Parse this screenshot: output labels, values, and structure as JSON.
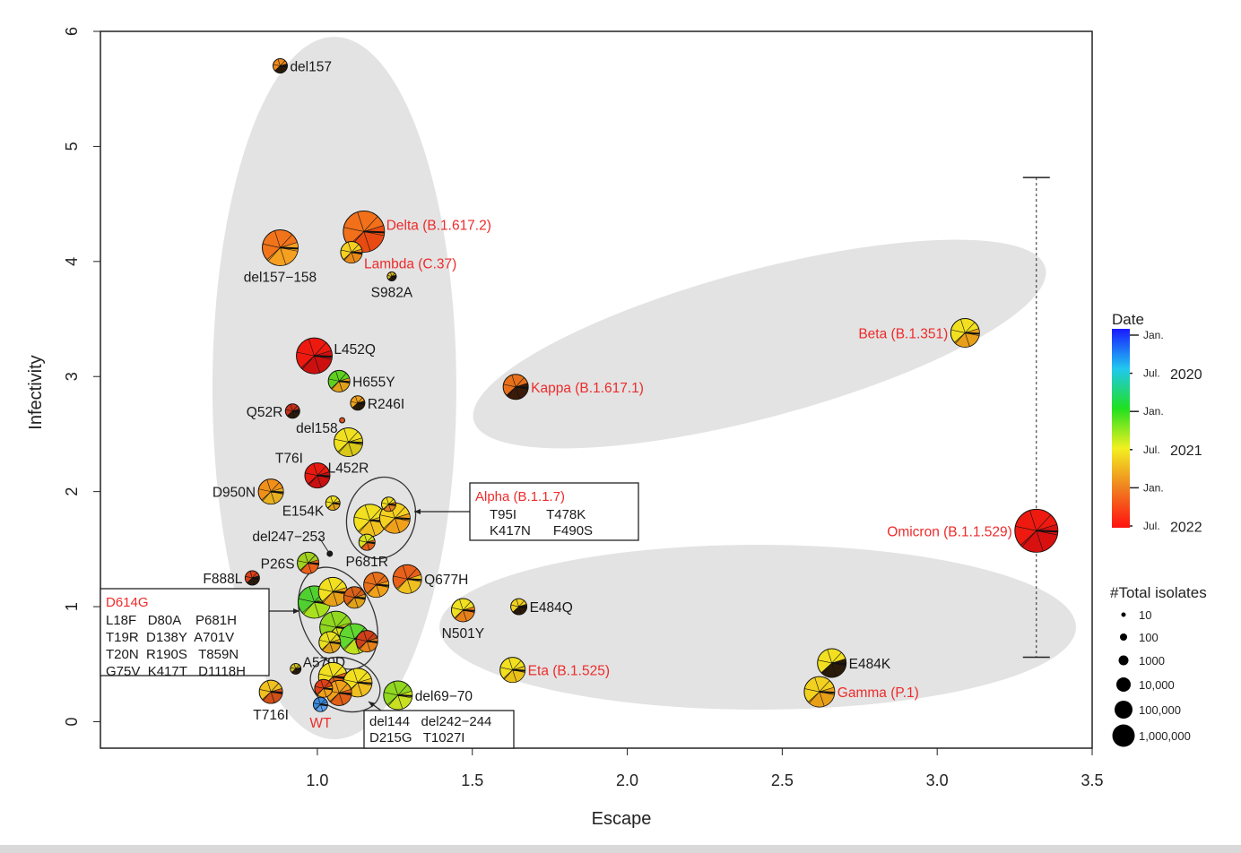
{
  "chart_data": {
    "type": "scatter",
    "marker": "pie",
    "xlabel": "Escape",
    "ylabel": "Infectivity",
    "xlim": [
      0.3,
      3.5
    ],
    "ylim": [
      -0.23,
      6.0
    ],
    "xticks": [
      1.0,
      1.5,
      2.0,
      2.5,
      3.0,
      3.5
    ],
    "xtick_labels": [
      "1.0",
      "1.5",
      "2.0",
      "2.5",
      "3.0",
      "3.5"
    ],
    "yticks": [
      0,
      1,
      2,
      3,
      4,
      5,
      6
    ],
    "ytick_labels": [
      "0",
      "1",
      "2",
      "3",
      "4",
      "5",
      "6"
    ],
    "grid": false,
    "label_color_variant": "#ee2b2b",
    "points": [
      {
        "label": "del157",
        "x": 0.88,
        "y": 5.7,
        "isolates": 190,
        "colors": [
          "#f08a1c",
          "#2a1a0a"
        ],
        "pos": "right",
        "variant": false
      },
      {
        "label": "Delta (B.1.617.2)",
        "x": 1.15,
        "y": 4.26,
        "isolates": 3600000,
        "colors": [
          "#f2701a",
          "#e84a12"
        ],
        "pos": "right-up",
        "variant": true
      },
      {
        "label": "del157−158",
        "x": 0.88,
        "y": 4.12,
        "isolates": 500000,
        "colors": [
          "#f2741a",
          "#f5a020"
        ],
        "pos": "below",
        "variant": false
      },
      {
        "label": "Lambda (C.37)",
        "x": 1.11,
        "y": 4.08,
        "isolates": 2700,
        "colors": [
          "#f5d020",
          "#e88a18"
        ],
        "pos": "right-down",
        "variant": true
      },
      {
        "label": "S982A",
        "x": 1.24,
        "y": 3.87,
        "isolates": 27,
        "colors": [
          "#e0c020",
          "#2a1a0a"
        ],
        "pos": "below",
        "variant": false
      },
      {
        "label": "Beta (B.1.351)",
        "x": 3.09,
        "y": 3.38,
        "isolates": 37000,
        "colors": [
          "#f2e020",
          "#e8a018"
        ],
        "pos": "left",
        "variant": true
      },
      {
        "label": "L452Q",
        "x": 0.99,
        "y": 3.18,
        "isolates": 500000,
        "colors": [
          "#ee1a10",
          "#cc1010"
        ],
        "pos": "right-up",
        "variant": false
      },
      {
        "label": "Kappa (B.1.617.1)",
        "x": 1.64,
        "y": 2.91,
        "isolates": 10000,
        "colors": [
          "#e8701a",
          "#3a1a08"
        ],
        "pos": "right",
        "variant": true
      },
      {
        "label": "H655Y",
        "x": 1.07,
        "y": 2.96,
        "isolates": 2700,
        "colors": [
          "#60d020",
          "#e0a018"
        ],
        "pos": "right",
        "variant": false
      },
      {
        "label": "R246I",
        "x": 1.13,
        "y": 2.77,
        "isolates": 190,
        "colors": [
          "#f0a01a",
          "#2a1a0a"
        ],
        "pos": "right",
        "variant": false
      },
      {
        "label": "Q52R",
        "x": 0.92,
        "y": 2.7,
        "isolates": 190,
        "colors": [
          "#c8301a",
          "#2a1a0a"
        ],
        "pos": "left",
        "variant": false
      },
      {
        "label": "del158",
        "x": 1.08,
        "y": 2.62,
        "isolates": 7,
        "colors": [
          "#e0501a",
          "#e0501a"
        ],
        "pos": "left-down",
        "variant": false
      },
      {
        "label": "L452R",
        "x": 1.1,
        "y": 2.43,
        "isolates": 37000,
        "colors": [
          "#f0e020",
          "#d8c818"
        ],
        "pos": "below",
        "variant": false
      },
      {
        "label": "T76I",
        "x": 1.0,
        "y": 2.14,
        "isolates": 10000,
        "colors": [
          "#e81a10",
          "#c81010"
        ],
        "pos": "left-up",
        "variant": false
      },
      {
        "label": "D950N",
        "x": 0.85,
        "y": 2.0,
        "isolates": 10000,
        "colors": [
          "#f0901a",
          "#e8b020"
        ],
        "pos": "left",
        "variant": false
      },
      {
        "label": "E154K",
        "x": 1.05,
        "y": 1.9,
        "isolates": 190,
        "colors": [
          "#f2e020",
          "#e0a018"
        ],
        "pos": "left-down",
        "variant": false
      },
      {
        "label": "",
        "x": 1.17,
        "y": 1.75,
        "isolates": 140000,
        "colors": [
          "#f2e020",
          "#f0c020"
        ],
        "pos": "none",
        "variant": false
      },
      {
        "label": "",
        "x": 1.25,
        "y": 1.77,
        "isolates": 70000,
        "colors": [
          "#f5d020",
          "#f0a01a"
        ],
        "pos": "none",
        "variant": false
      },
      {
        "label": "",
        "x": 1.23,
        "y": 1.89,
        "isolates": 190,
        "colors": [
          "#f2e020",
          "#e08018"
        ],
        "pos": "none",
        "variant": false
      },
      {
        "label": "del247−253",
        "x": 1.04,
        "y": 1.46,
        "isolates": 7,
        "colors": [
          "#1a1a1a",
          "#1a1a1a"
        ],
        "pos": "left-up",
        "variant": false
      },
      {
        "label": "P681R",
        "x": 1.16,
        "y": 1.56,
        "isolates": 370,
        "colors": [
          "#d8e020",
          "#e06018"
        ],
        "pos": "below",
        "variant": false
      },
      {
        "label": "P26S",
        "x": 0.97,
        "y": 1.38,
        "isolates": 2700,
        "colors": [
          "#a0d020",
          "#e8601a"
        ],
        "pos": "left",
        "variant": false
      },
      {
        "label": "F888L",
        "x": 0.79,
        "y": 1.25,
        "isolates": 190,
        "colors": [
          "#d8401a",
          "#2a1a0a"
        ],
        "pos": "left",
        "variant": false
      },
      {
        "label": "",
        "x": 1.19,
        "y": 1.19,
        "isolates": 10000,
        "colors": [
          "#e8701a",
          "#f0a01a"
        ],
        "pos": "none",
        "variant": false
      },
      {
        "label": "Q677H",
        "x": 1.29,
        "y": 1.24,
        "isolates": 37000,
        "colors": [
          "#e8601a",
          "#f0c020"
        ],
        "pos": "right",
        "variant": false
      },
      {
        "label": "E484Q",
        "x": 1.65,
        "y": 1.0,
        "isolates": 370,
        "colors": [
          "#f2d020",
          "#2a1a0a"
        ],
        "pos": "right",
        "variant": false
      },
      {
        "label": "N501Y",
        "x": 1.47,
        "y": 0.97,
        "isolates": 5000,
        "colors": [
          "#f0e020",
          "#e8801a"
        ],
        "pos": "below",
        "variant": false
      },
      {
        "label": "",
        "x": 0.99,
        "y": 1.04,
        "isolates": 140000,
        "colors": [
          "#50d030",
          "#a8e020"
        ],
        "pos": "none",
        "variant": false
      },
      {
        "label": "",
        "x": 1.05,
        "y": 1.13,
        "isolates": 37000,
        "colors": [
          "#f2e020",
          "#e8a018"
        ],
        "pos": "none",
        "variant": false
      },
      {
        "label": "",
        "x": 1.12,
        "y": 1.08,
        "isolates": 2700,
        "colors": [
          "#d86018",
          "#e0a018"
        ],
        "pos": "none",
        "variant": false
      },
      {
        "label": "",
        "x": 1.06,
        "y": 0.82,
        "isolates": 140000,
        "colors": [
          "#90d820",
          "#d8e020"
        ],
        "pos": "none",
        "variant": false
      },
      {
        "label": "",
        "x": 1.12,
        "y": 0.72,
        "isolates": 70000,
        "colors": [
          "#60d830",
          "#c0e020"
        ],
        "pos": "none",
        "variant": false
      },
      {
        "label": "",
        "x": 1.16,
        "y": 0.7,
        "isolates": 2700,
        "colors": [
          "#d04018",
          "#e8801a"
        ],
        "pos": "none",
        "variant": false
      },
      {
        "label": "",
        "x": 1.04,
        "y": 0.69,
        "isolates": 2700,
        "colors": [
          "#e8e020",
          "#e0a018"
        ],
        "pos": "none",
        "variant": false
      },
      {
        "label": "A570D",
        "x": 0.93,
        "y": 0.46,
        "isolates": 50,
        "colors": [
          "#d0c020",
          "#2a1a0a"
        ],
        "pos": "right-up",
        "variant": false
      },
      {
        "label": "E484K",
        "x": 2.66,
        "y": 0.51,
        "isolates": 37000,
        "colors": [
          "#f2e020",
          "#2a1a0a"
        ],
        "pos": "right",
        "variant": false
      },
      {
        "label": "Eta (B.1.525)",
        "x": 1.63,
        "y": 0.45,
        "isolates": 10000,
        "colors": [
          "#f2e020",
          "#e8c018"
        ],
        "pos": "right",
        "variant": true
      },
      {
        "label": "",
        "x": 1.05,
        "y": 0.39,
        "isolates": 37000,
        "colors": [
          "#f2e020",
          "#e06018"
        ],
        "pos": "none",
        "variant": false
      },
      {
        "label": "",
        "x": 1.13,
        "y": 0.34,
        "isolates": 37000,
        "colors": [
          "#f2e020",
          "#f0c020"
        ],
        "pos": "none",
        "variant": false
      },
      {
        "label": "",
        "x": 1.07,
        "y": 0.25,
        "isolates": 10000,
        "colors": [
          "#f0a01a",
          "#e06018"
        ],
        "pos": "none",
        "variant": false
      },
      {
        "label": "",
        "x": 1.02,
        "y": 0.29,
        "isolates": 700,
        "colors": [
          "#e04018",
          "#f0a01a"
        ],
        "pos": "none",
        "variant": false
      },
      {
        "label": "del69−70",
        "x": 1.26,
        "y": 0.23,
        "isolates": 37000,
        "colors": [
          "#90d820",
          "#c8e020"
        ],
        "pos": "right",
        "variant": false
      },
      {
        "label": "Gamma (P.1)",
        "x": 2.62,
        "y": 0.26,
        "isolates": 70000,
        "colors": [
          "#f2d020",
          "#e8a018"
        ],
        "pos": "right",
        "variant": true
      },
      {
        "label": "T716I",
        "x": 0.85,
        "y": 0.26,
        "isolates": 5000,
        "colors": [
          "#f0c020",
          "#d05018"
        ],
        "pos": "below",
        "variant": false
      },
      {
        "label": "WT",
        "x": 1.01,
        "y": 0.15,
        "isolates": 190,
        "colors": [
          "#3a8ae0",
          "#5aa0f0"
        ],
        "pos": "below",
        "variant": true
      },
      {
        "label": "Omicron (B.1.1.529)",
        "x": 3.32,
        "y": 1.66,
        "isolates": 7000000,
        "colors": [
          "#ee1a10",
          "#d81010"
        ],
        "pos": "left",
        "variant": true
      }
    ],
    "error_bar": {
      "x": 3.32,
      "y_low": 0.56,
      "y_high": 4.73
    },
    "annotations": [
      {
        "title": "Alpha (B.1.1.7)",
        "lines": [
          "T95I        T478K",
          "K417N      F490S"
        ]
      },
      {
        "title": "D614G",
        "lines": [
          "L18F   D80A    P681H",
          "T19R  D138Y  A701V",
          "T20N  R190S   T859N",
          "G75V  K417T   D1118H"
        ]
      },
      {
        "title": "",
        "lines": [
          "del144   del242−244",
          "D215G   T1027I"
        ]
      }
    ],
    "colorbar": {
      "title": "Date",
      "colors": [
        "#1a1aff",
        "#20c8f0",
        "#20e020",
        "#f2f020",
        "#f08020",
        "#ff1010"
      ],
      "ticks": [
        "Jan.",
        "Jul.",
        "Jan.",
        "Jul.",
        "Jan.",
        "Jul."
      ],
      "years": [
        "2020",
        "2021",
        "2022"
      ]
    },
    "size_legend": {
      "title": "#Total isolates",
      "labels": [
        "10",
        "100",
        "1000",
        "10,000",
        "100,000",
        "1,000,000"
      ]
    },
    "legend_placement": "right"
  }
}
